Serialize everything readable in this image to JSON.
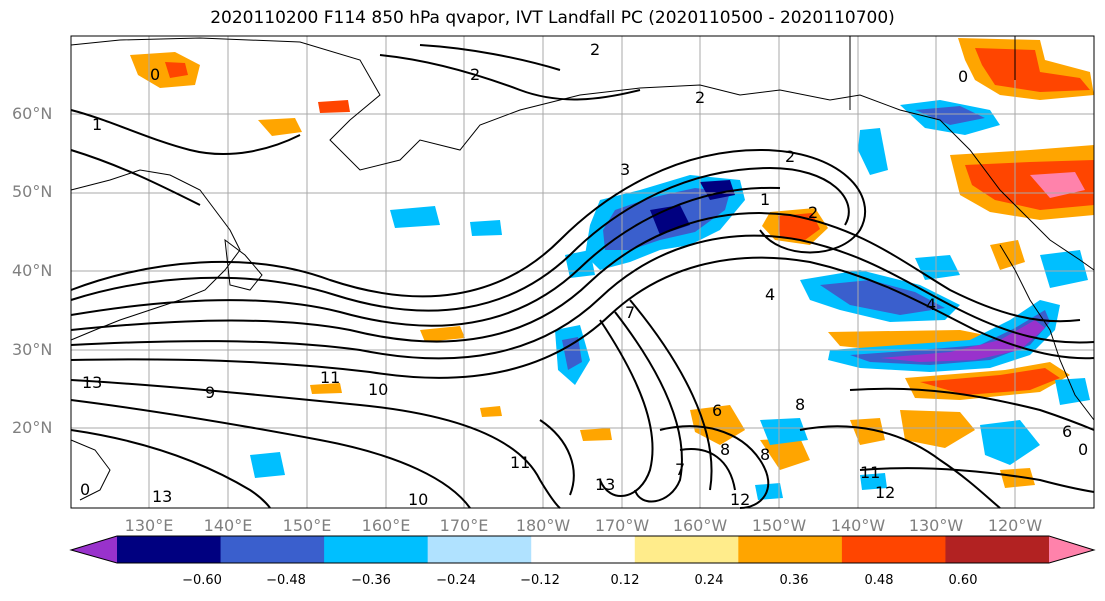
{
  "title": "2020110200 F114 850 hPa qvapor, IVT Landfall PC (2020110500 - 2020110700)",
  "lat_labels": [
    "60°N",
    "50°N",
    "40°N",
    "30°N",
    "20°N"
  ],
  "lon_labels": [
    "130°E",
    "140°E",
    "150°E",
    "160°E",
    "170°E",
    "180°W",
    "170°W",
    "160°W",
    "150°W",
    "140°W",
    "130°W",
    "120°W"
  ],
  "colorbar": {
    "colors": [
      "#9932cc",
      "#000080",
      "#3a5fcd",
      "#00bfff",
      "#b0e2ff",
      "#ffffff",
      "#ffec8b",
      "#ffa500",
      "#ff4500",
      "#b22222",
      "#ff82ab"
    ],
    "tick_labels": [
      "−0.60",
      "−0.48",
      "−0.36",
      "−0.24",
      "−0.12",
      "0.12",
      "0.24",
      "0.36",
      "0.48",
      "0.60"
    ]
  },
  "contour_labels": [
    "2",
    "2",
    "2",
    "2",
    "0",
    "1",
    "1",
    "2",
    "3",
    "4",
    "6",
    "7",
    "7",
    "8",
    "8",
    "8",
    "9",
    "10",
    "11",
    "11",
    "11",
    "12",
    "12",
    "13",
    "13",
    "13",
    "10",
    "0",
    "0",
    "4",
    "6",
    "0"
  ]
}
